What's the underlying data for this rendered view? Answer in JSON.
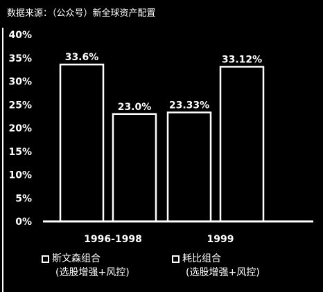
{
  "source_note": "数据来源：（公众号）新全球资产配置",
  "colors": {
    "background": "#000000",
    "foreground": "#ffffff"
  },
  "legend": [
    {
      "name": "斯文森组合",
      "sub": "(选股增强+风控)"
    },
    {
      "name": "耗比组合",
      "sub": "(选股增强+风控)"
    }
  ],
  "chart_data": {
    "type": "bar",
    "categories": [
      "1996-1998",
      "1999"
    ],
    "series": [
      {
        "name": "斯文森组合 (选股增强+风控)",
        "values": [
          33.6,
          23.33
        ],
        "labels": [
          "33.6%",
          "23.33%"
        ]
      },
      {
        "name": "耗比组合 (选股增强+风控)",
        "values": [
          23.0,
          33.12
        ],
        "labels": [
          "23.0%",
          "33.12%"
        ]
      }
    ],
    "yticks": [
      "0%",
      "5%",
      "10%",
      "15%",
      "20%",
      "25%",
      "30%",
      "35%",
      "40%"
    ],
    "ylim": [
      0,
      40
    ],
    "grid": false,
    "legend_position": "bottom"
  }
}
